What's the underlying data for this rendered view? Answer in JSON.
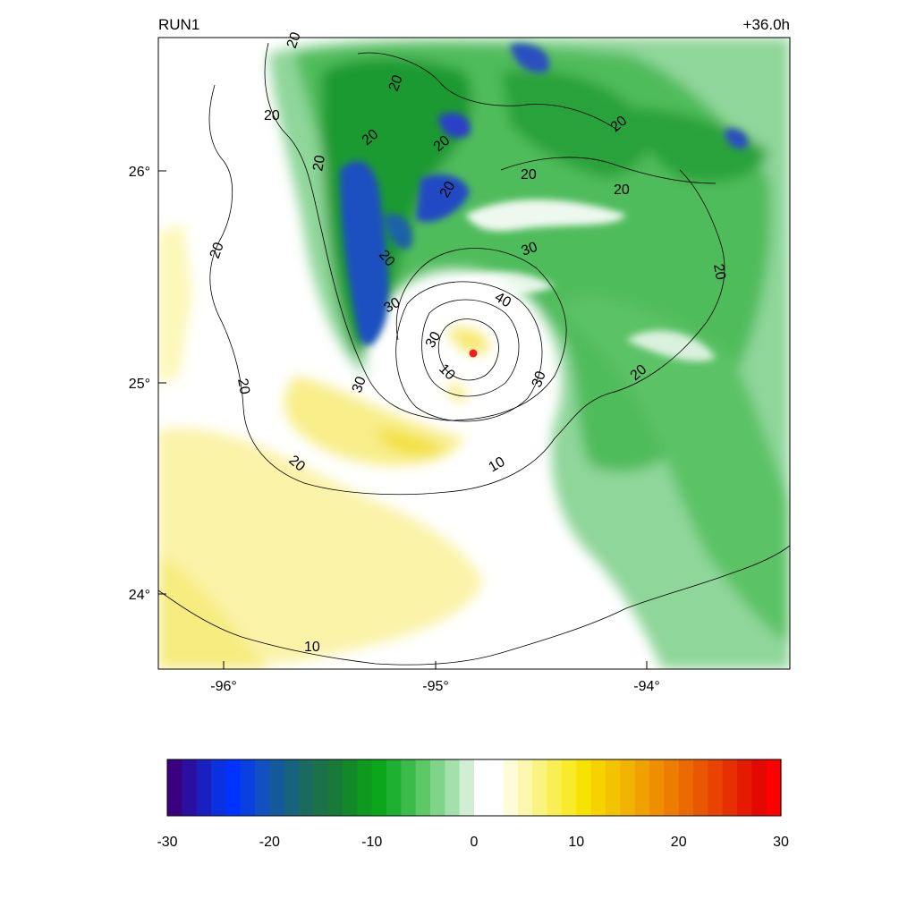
{
  "header": {
    "left_title": "RUN1",
    "right_title": "+36.0h"
  },
  "map": {
    "lat_ticks": [
      "26°",
      "25°",
      "24°"
    ],
    "lon_ticks": [
      "-96°",
      "-95°",
      "-94°"
    ],
    "storm_center_color": "#ff1a1a",
    "contour_labels": [
      {
        "text": "20"
      },
      {
        "text": "20"
      },
      {
        "text": "20"
      },
      {
        "text": "20"
      },
      {
        "text": "20"
      },
      {
        "text": "20"
      },
      {
        "text": "20"
      },
      {
        "text": "20"
      },
      {
        "text": "20"
      },
      {
        "text": "20"
      },
      {
        "text": "20"
      },
      {
        "text": "20"
      },
      {
        "text": "20"
      },
      {
        "text": "20"
      },
      {
        "text": "20"
      },
      {
        "text": "20"
      },
      {
        "text": "30"
      },
      {
        "text": "30"
      },
      {
        "text": "30"
      },
      {
        "text": "30"
      },
      {
        "text": "30"
      },
      {
        "text": "40"
      },
      {
        "text": "10"
      },
      {
        "text": "10"
      },
      {
        "text": "10"
      }
    ]
  },
  "colorbar": {
    "ticks": [
      "-30",
      "-20",
      "-10",
      "0",
      "10",
      "20",
      "30"
    ],
    "range": [
      -30,
      30
    ],
    "colors": [
      "#3a0080",
      "#2a0fa0",
      "#1a20c0",
      "#0a30e0",
      "#0033ff",
      "#0a40e0",
      "#1050c0",
      "#145a9a",
      "#17627c",
      "#1a6a60",
      "#1b7248",
      "#187a36",
      "#128828",
      "#0d9a1e",
      "#0aa71c",
      "#1eb030",
      "#3bbc4a",
      "#5cc866",
      "#7ed488",
      "#a4e1aa",
      "#cfeed2",
      "#ffffff",
      "#ffffff",
      "#fdfbd8",
      "#fbf7ac",
      "#faf37e",
      "#f9ef52",
      "#f8eb28",
      "#f7e200",
      "#f5d200",
      "#f4c300",
      "#f2b200",
      "#f0a100",
      "#ef8f00",
      "#ed7d00",
      "#eb6a00",
      "#e95700",
      "#e84300",
      "#e62f00",
      "#e51b00",
      "#e30800",
      "#ff0000"
    ]
  }
}
